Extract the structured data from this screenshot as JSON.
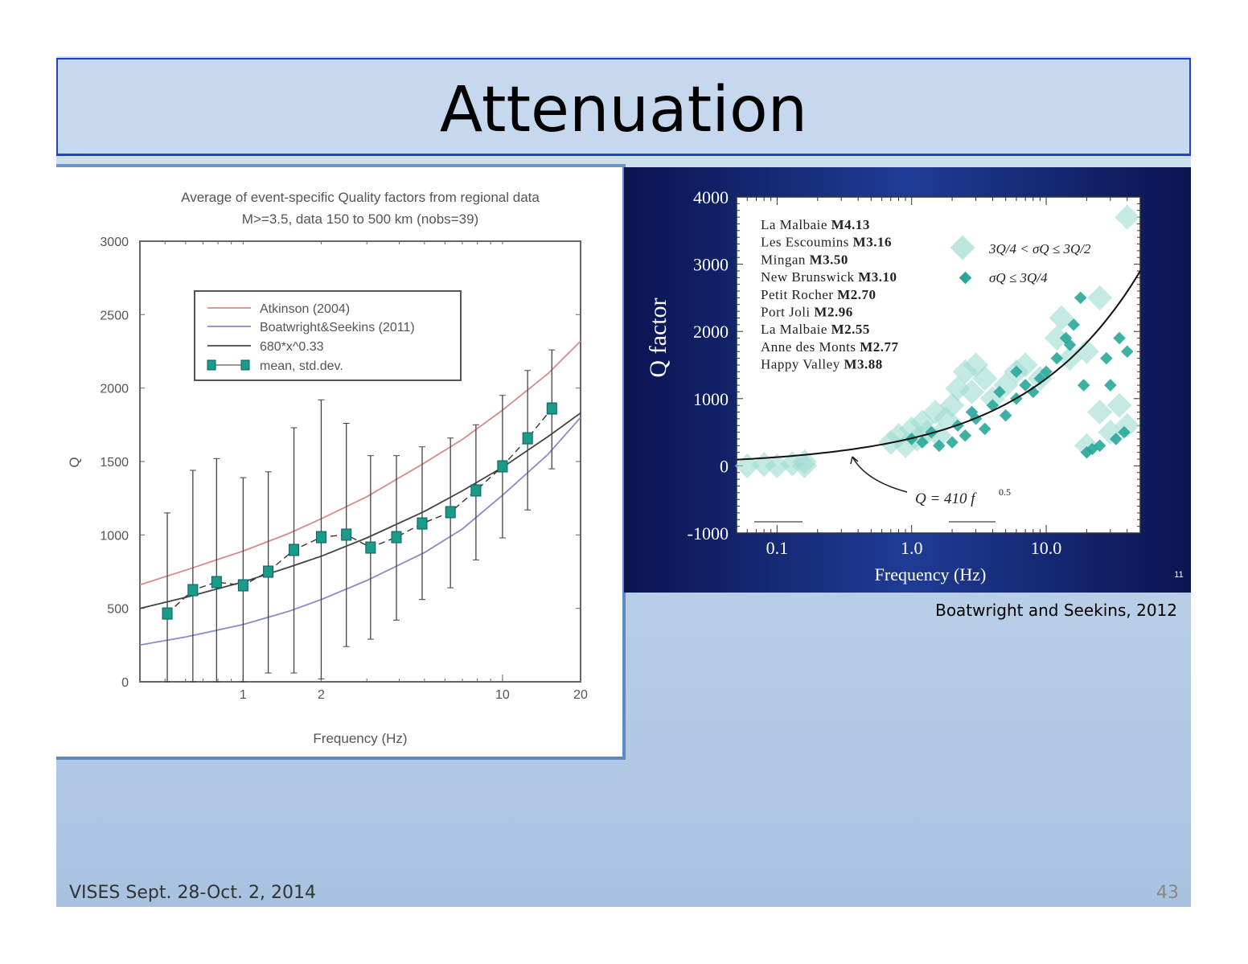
{
  "slide": {
    "title": "Attenuation",
    "credit": "Boatwright and Seekins, 2012",
    "footer": "VISES Sept. 28-Oct. 2, 2014",
    "page_number": "43",
    "inner_figure_number": "11"
  },
  "chart_data": [
    {
      "type": "line",
      "title": "Average of event-specific Quality factors from regional data",
      "subtitle": "M>=3.5, data 150 to 500 km (nobs=39)",
      "xlabel": "Frequency (Hz)",
      "ylabel": "Q",
      "x_scale": "log",
      "xlim": [
        0.4,
        20
      ],
      "ylim": [
        0,
        3000
      ],
      "x_ticks": [
        1,
        2,
        10,
        20
      ],
      "y_ticks": [
        0,
        500,
        1000,
        1500,
        2000,
        2500,
        3000
      ],
      "legend_position": "upper-left",
      "grid": false,
      "series": [
        {
          "name": "Atkinson (2004)",
          "color": "#d98a8a",
          "x": [
            0.4,
            0.6,
            1,
            1.5,
            2,
            3,
            5,
            7,
            10,
            15,
            20
          ],
          "y": [
            660,
            760,
            890,
            1010,
            1110,
            1260,
            1490,
            1650,
            1850,
            2100,
            2320
          ]
        },
        {
          "name": "Boatwright&Seekins (2011)",
          "color": "#8a8acb",
          "x": [
            0.4,
            0.6,
            1,
            1.5,
            2,
            3,
            5,
            7,
            10,
            15,
            20
          ],
          "y": [
            250,
            305,
            390,
            480,
            560,
            690,
            880,
            1040,
            1270,
            1550,
            1800
          ]
        },
        {
          "name": "680*x^0.33",
          "color": "#444444",
          "x": [
            0.4,
            0.6,
            1,
            1.5,
            2,
            3,
            5,
            7,
            10,
            15,
            20
          ],
          "y": [
            500,
            575,
            680,
            780,
            855,
            980,
            1160,
            1300,
            1460,
            1670,
            1830
          ]
        },
        {
          "name": "mean, std.dev.",
          "color": "#1a9a8a",
          "x": [
            0.51,
            0.64,
            0.79,
            1.0,
            1.25,
            1.57,
            2.0,
            2.5,
            3.1,
            3.9,
            4.9,
            6.3,
            7.9,
            10,
            12.5,
            15.5
          ],
          "y": [
            465,
            624,
            679,
            657,
            750,
            898,
            985,
            1002,
            914,
            985,
            1078,
            1155,
            1303,
            1467,
            1658,
            1861
          ],
          "err_high": [
            1150,
            1440,
            1520,
            1390,
            1430,
            1730,
            1920,
            1760,
            1540,
            1540,
            1600,
            1660,
            1750,
            1950,
            2120,
            2260
          ],
          "err_low": [
            0,
            0,
            0,
            0,
            60,
            60,
            20,
            240,
            290,
            420,
            560,
            640,
            830,
            980,
            1170,
            1450
          ]
        }
      ]
    },
    {
      "type": "scatter",
      "xlabel": "Frequency (Hz)",
      "ylabel": "Q factor",
      "x_scale": "log",
      "xlim": [
        0.05,
        50
      ],
      "ylim": [
        -1000,
        4000
      ],
      "x_ticks": [
        "0.1",
        "1.0",
        "10.0"
      ],
      "x_tick_values": [
        0.1,
        1,
        10
      ],
      "y_ticks": [
        -1000,
        0,
        1000,
        2000,
        3000,
        4000
      ],
      "grid": false,
      "events": [
        {
          "name": "La Malbaie",
          "mag": "M4.13"
        },
        {
          "name": "Les Escoumins",
          "mag": "M3.16"
        },
        {
          "name": "Mingan",
          "mag": "M3.50"
        },
        {
          "name": "New Brunswick",
          "mag": "M3.10"
        },
        {
          "name": "Petit Rocher",
          "mag": "M2.70"
        },
        {
          "name": "Port Joli",
          "mag": "M2.96"
        },
        {
          "name": "La Malbaie",
          "mag": "M2.55"
        },
        {
          "name": "Anne des Monts",
          "mag": "M2.77"
        },
        {
          "name": "Happy Valley",
          "mag": "M3.88"
        }
      ],
      "fit": {
        "label": "Q = 410 f",
        "exponent_label": "0.5",
        "coefficient": 410,
        "exponent": 0.5,
        "color": "#111111"
      },
      "series": [
        {
          "name": "3Q/4 < σQ ≤ 3Q/2",
          "color": "#9fdcd0",
          "points": [
            [
              0.06,
              0
            ],
            [
              0.08,
              20
            ],
            [
              0.1,
              0
            ],
            [
              0.13,
              30
            ],
            [
              0.16,
              60
            ],
            [
              0.16,
              0
            ],
            [
              0.7,
              350
            ],
            [
              0.8,
              450
            ],
            [
              0.9,
              300
            ],
            [
              1.0,
              550
            ],
            [
              1.1,
              400
            ],
            [
              1.2,
              650
            ],
            [
              1.3,
              500
            ],
            [
              1.5,
              800
            ],
            [
              1.6,
              450
            ],
            [
              1.8,
              700
            ],
            [
              2.0,
              900
            ],
            [
              2.2,
              1150
            ],
            [
              2.5,
              1400
            ],
            [
              2.8,
              1100
            ],
            [
              3,
              1500
            ],
            [
              3.5,
              1300
            ],
            [
              4,
              1000
            ],
            [
              5,
              1200
            ],
            [
              6,
              1400
            ],
            [
              7,
              1500
            ],
            [
              9,
              1300
            ],
            [
              12,
              1900
            ],
            [
              13,
              2200
            ],
            [
              15,
              1600
            ],
            [
              20,
              1700
            ],
            [
              25,
              2500
            ],
            [
              30,
              500
            ],
            [
              35,
              900
            ],
            [
              40,
              600
            ],
            [
              40,
              3700
            ],
            [
              20,
              300
            ],
            [
              25,
              800
            ]
          ]
        },
        {
          "name": "σQ ≤ 3Q/4",
          "color": "#2aa79a",
          "points": [
            [
              1.0,
              400
            ],
            [
              1.2,
              350
            ],
            [
              1.4,
              500
            ],
            [
              1.6,
              300
            ],
            [
              2.0,
              350
            ],
            [
              2.2,
              600
            ],
            [
              2.5,
              450
            ],
            [
              2.8,
              800
            ],
            [
              3,
              700
            ],
            [
              3.5,
              550
            ],
            [
              4,
              900
            ],
            [
              4.5,
              1100
            ],
            [
              5,
              750
            ],
            [
              6,
              1000
            ],
            [
              6,
              1400
            ],
            [
              7,
              1200
            ],
            [
              8,
              1100
            ],
            [
              9,
              1300
            ],
            [
              10,
              1400
            ],
            [
              12,
              1600
            ],
            [
              14,
              1900
            ],
            [
              15,
              1800
            ],
            [
              16,
              2100
            ],
            [
              18,
              2500
            ],
            [
              19,
              1200
            ],
            [
              20,
              200
            ],
            [
              22,
              250
            ],
            [
              25,
              300
            ],
            [
              28,
              1600
            ],
            [
              30,
              1200
            ],
            [
              33,
              400
            ],
            [
              35,
              1900
            ],
            [
              40,
              1700
            ],
            [
              38,
              500
            ]
          ]
        }
      ]
    }
  ]
}
